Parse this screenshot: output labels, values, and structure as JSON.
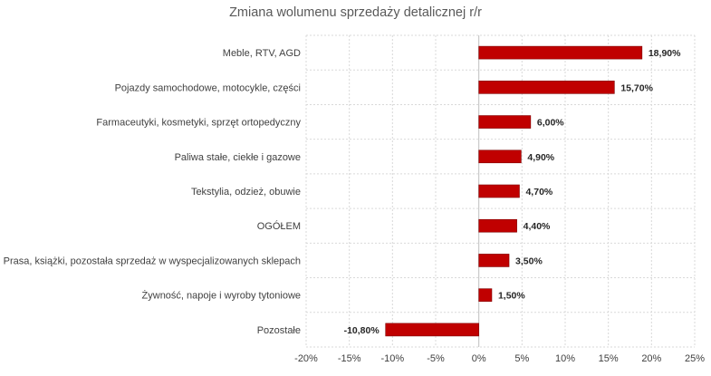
{
  "chart_data": {
    "type": "bar",
    "orientation": "horizontal",
    "title": "Zmiana wolumenu sprzedaży detalicznej r/r",
    "categories": [
      "Meble, RTV, AGD",
      "Pojazdy samochodowe, motocykle, części",
      "Farmaceutyki, kosmetyki, sprzęt ortopedyczny",
      "Paliwa stałe, ciekłe i gazowe",
      "Tekstylia, odzież, obuwie",
      "OGÓŁEM",
      "Prasa, książki, pozostała sprzedaż w wyspecjalizowanych sklepach",
      "Żywność, napoje i wyroby tytoniowe",
      "Pozostałe"
    ],
    "values": [
      18.9,
      15.7,
      6.0,
      4.9,
      4.7,
      4.4,
      3.5,
      1.5,
      -10.8
    ],
    "data_labels": [
      "18,90%",
      "15,70%",
      "6,00%",
      "4,90%",
      "4,70%",
      "4,40%",
      "3,50%",
      "1,50%",
      "-10,80%"
    ],
    "xlim": [
      -20,
      25
    ],
    "x_ticks": [
      -20,
      -15,
      -10,
      -5,
      0,
      5,
      10,
      15,
      20,
      25
    ],
    "x_tick_labels": [
      "-20%",
      "-15%",
      "-10%",
      "-5%",
      "0%",
      "5%",
      "10%",
      "15%",
      "20%",
      "25%"
    ],
    "grid": true,
    "legend": "none",
    "bar_color": "#c00000"
  }
}
